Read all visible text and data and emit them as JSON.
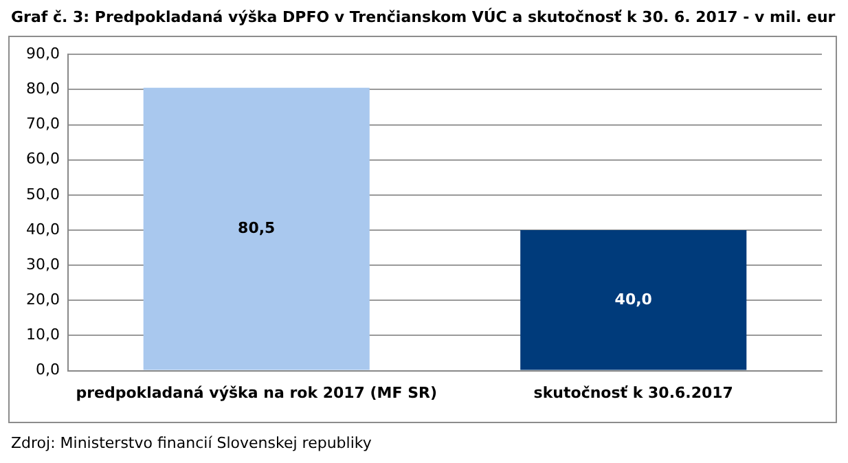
{
  "chart_data": {
    "type": "bar",
    "title": "Graf č. 3: Predpokladaná výška DPFO v Trenčianskom VÚC a skutočnosť k 30. 6. 2017 - v mil. eur",
    "categories": [
      "predpokladaná výška na rok 2017 (MF SR)",
      "skutočnosť k 30.6.2017"
    ],
    "values": [
      80.5,
      40.0
    ],
    "colors": [
      "#a9c8ee",
      "#003b7b"
    ],
    "value_labels": [
      "80,5",
      "40,0"
    ],
    "ylim": [
      0,
      90
    ],
    "yticks": [
      {
        "value": 0,
        "label": "0,0"
      },
      {
        "value": 10,
        "label": "10,0"
      },
      {
        "value": 20,
        "label": "20,0"
      },
      {
        "value": 30,
        "label": "30,0"
      },
      {
        "value": 40,
        "label": "40,0"
      },
      {
        "value": 50,
        "label": "50,0"
      },
      {
        "value": 60,
        "label": "60,0"
      },
      {
        "value": 70,
        "label": "70,0"
      },
      {
        "value": 80,
        "label": "80,0"
      },
      {
        "value": 90,
        "label": "90,0"
      }
    ],
    "grid": "y",
    "annotations": [
      "Zdroj: Ministerstvo financií Slovenskej republiky"
    ]
  }
}
